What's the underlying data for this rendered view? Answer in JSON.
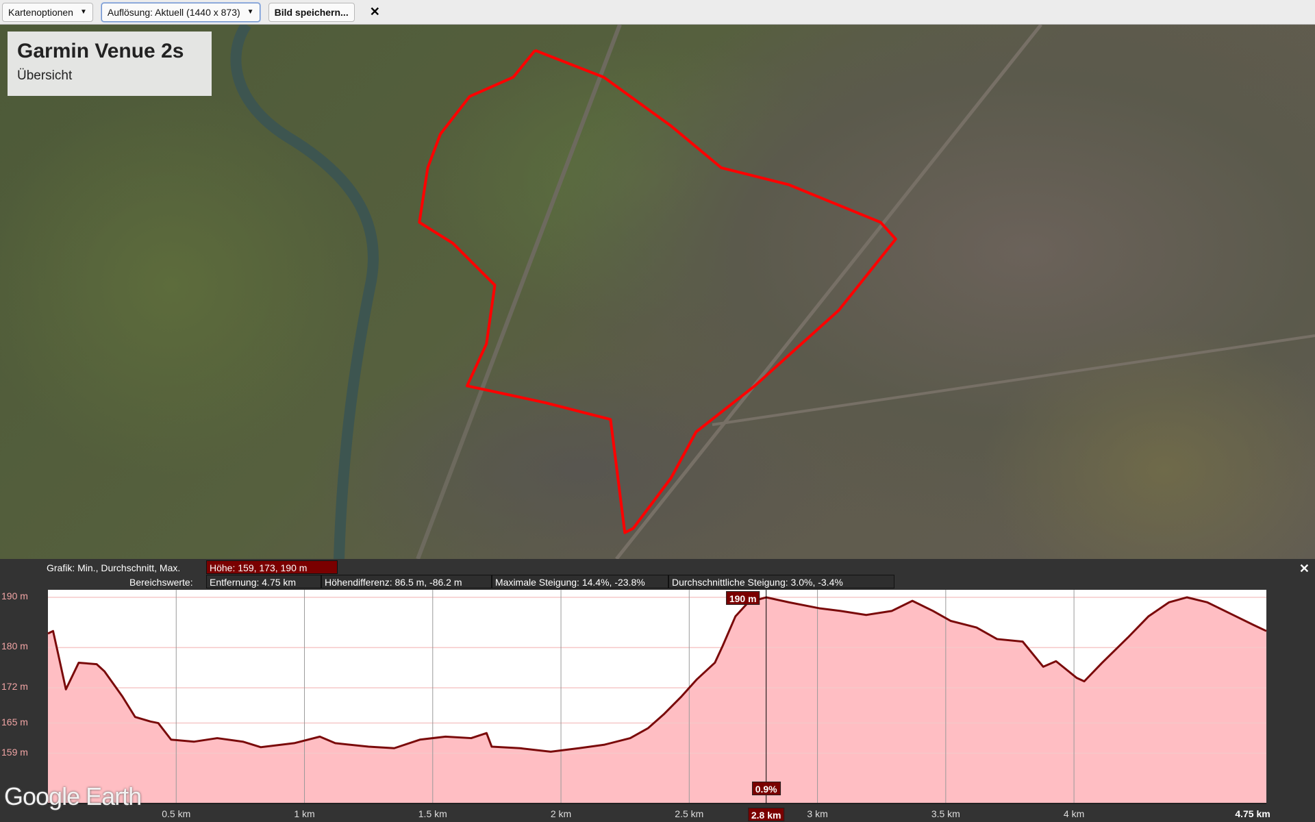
{
  "toolbar": {
    "map_options": "Kartenoptionen",
    "resolution": "Auflösung: Aktuell (1440 x 873)",
    "save": "Bild speichern...",
    "close": "✕"
  },
  "overlay": {
    "title": "Garmin Venue 2s",
    "subtitle": "Übersicht"
  },
  "colors": {
    "route": "#ff0000",
    "profile_line": "#7a0a0a",
    "profile_fill": "#ffb3b8",
    "highlight": "#7a0000"
  },
  "chart_header": {
    "graph_label": "Grafik: Min., Durchschnitt, Max.",
    "graph_value": "Höhe: 159, 173, 190 m",
    "range_label": "Bereichswerte:",
    "distance": "Entfernung: 4.75 km",
    "elev_diff": "Höhendifferenz: 86.5 m, -86.2 m",
    "max_slope": "Maximale Steigung: 14.4%, -23.8%",
    "avg_slope": "Durchschnittliche Steigung: 3.0%, -3.4%",
    "close": "✕"
  },
  "cursor": {
    "distance_label": "2.8 km",
    "elevation_label": "190 m",
    "slope_label": "0.9%",
    "distance": 2.8
  },
  "logo": "Google Earth",
  "chart_data": {
    "type": "area",
    "xlabel": "",
    "ylabel": "",
    "xlim": [
      0,
      4.75
    ],
    "ylim": [
      149,
      191.5
    ],
    "x_ticks": [
      {
        "v": 0.5,
        "label": "0.5 km"
      },
      {
        "v": 1,
        "label": "1 km"
      },
      {
        "v": 1.5,
        "label": "1.5 km"
      },
      {
        "v": 2,
        "label": "2 km"
      },
      {
        "v": 2.5,
        "label": "2.5 km"
      },
      {
        "v": 3,
        "label": "3 km"
      },
      {
        "v": 3.5,
        "label": "3.5 km"
      },
      {
        "v": 4,
        "label": "4 km"
      },
      {
        "v": 4.75,
        "label": "4.75 km"
      }
    ],
    "y_ticks": [
      {
        "v": 190,
        "label": "190 m"
      },
      {
        "v": 180,
        "label": "180 m"
      },
      {
        "v": 172,
        "label": "172 m"
      },
      {
        "v": 165,
        "label": "165 m"
      },
      {
        "v": 159,
        "label": "159 m"
      }
    ],
    "grid": true,
    "x": [
      0,
      0.02,
      0.04,
      0.07,
      0.12,
      0.19,
      0.22,
      0.29,
      0.34,
      0.4,
      0.43,
      0.48,
      0.57,
      0.66,
      0.76,
      0.83,
      0.96,
      1.06,
      1.12,
      1.25,
      1.35,
      1.45,
      1.55,
      1.65,
      1.71,
      1.73,
      1.84,
      1.96,
      2.07,
      2.17,
      2.27,
      2.34,
      2.4,
      2.47,
      2.53,
      2.6,
      2.63,
      2.68,
      2.73,
      2.8,
      2.89,
      3.01,
      3.09,
      3.19,
      3.29,
      3.37,
      3.45,
      3.52,
      3.62,
      3.7,
      3.8,
      3.88,
      3.93,
      4.01,
      4.04,
      4.11,
      4.21,
      4.29,
      4.37,
      4.44,
      4.52,
      4.62,
      4.7,
      4.75
    ],
    "y": [
      182.8,
      183.3,
      178.7,
      171.7,
      177,
      176.7,
      175.3,
      170.3,
      166.2,
      165.3,
      165,
      161.7,
      161.3,
      162,
      161.3,
      160.2,
      161,
      162.3,
      161,
      160.3,
      160,
      161.7,
      162.3,
      162,
      163,
      160.3,
      160,
      159.3,
      160,
      160.7,
      162,
      164,
      166.7,
      170.3,
      173.7,
      177,
      180.3,
      186.2,
      189,
      190,
      189,
      187.8,
      187.3,
      186.5,
      187.3,
      189.3,
      187.3,
      185.3,
      184,
      181.7,
      181.2,
      176.2,
      177.3,
      174,
      173.3,
      177,
      182,
      186.2,
      189,
      190,
      189,
      186.5,
      184.5,
      183.3
    ]
  }
}
